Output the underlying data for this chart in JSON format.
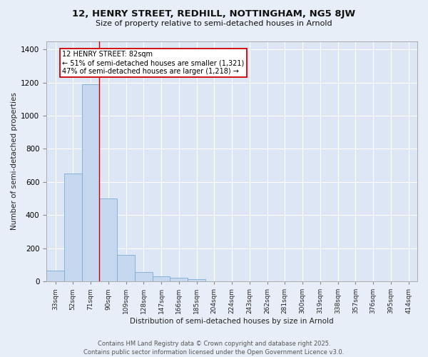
{
  "title1": "12, HENRY STREET, REDHILL, NOTTINGHAM, NG5 8JW",
  "title2": "Size of property relative to semi-detached houses in Arnold",
  "xlabel": "Distribution of semi-detached houses by size in Arnold",
  "ylabel": "Number of semi-detached properties",
  "categories": [
    "33sqm",
    "52sqm",
    "71sqm",
    "90sqm",
    "109sqm",
    "128sqm",
    "147sqm",
    "166sqm",
    "185sqm",
    "204sqm",
    "224sqm",
    "243sqm",
    "262sqm",
    "281sqm",
    "300sqm",
    "319sqm",
    "338sqm",
    "357sqm",
    "376sqm",
    "395sqm",
    "414sqm"
  ],
  "values": [
    65,
    650,
    1190,
    500,
    160,
    55,
    30,
    20,
    15,
    0,
    0,
    0,
    0,
    0,
    0,
    0,
    0,
    0,
    0,
    0,
    0
  ],
  "bar_color": "#c5d8f0",
  "bar_edge_color": "#7aadd4",
  "annotation_text": "12 HENRY STREET: 82sqm\n← 51% of semi-detached houses are smaller (1,321)\n47% of semi-detached houses are larger (1,218) →",
  "annotation_box_color": "#ffffff",
  "annotation_box_edge_color": "#cc0000",
  "vline_color": "#cc0000",
  "vline_x_index": 2.5,
  "ylim": [
    0,
    1450
  ],
  "yticks": [
    0,
    200,
    400,
    600,
    800,
    1000,
    1200,
    1400
  ],
  "footer": "Contains HM Land Registry data © Crown copyright and database right 2025.\nContains public sector information licensed under the Open Government Licence v3.0.",
  "background_color": "#e8eef8",
  "plot_background_color": "#dce6f5",
  "grid_color": "#ffffff",
  "spine_color": "#aaaaaa"
}
